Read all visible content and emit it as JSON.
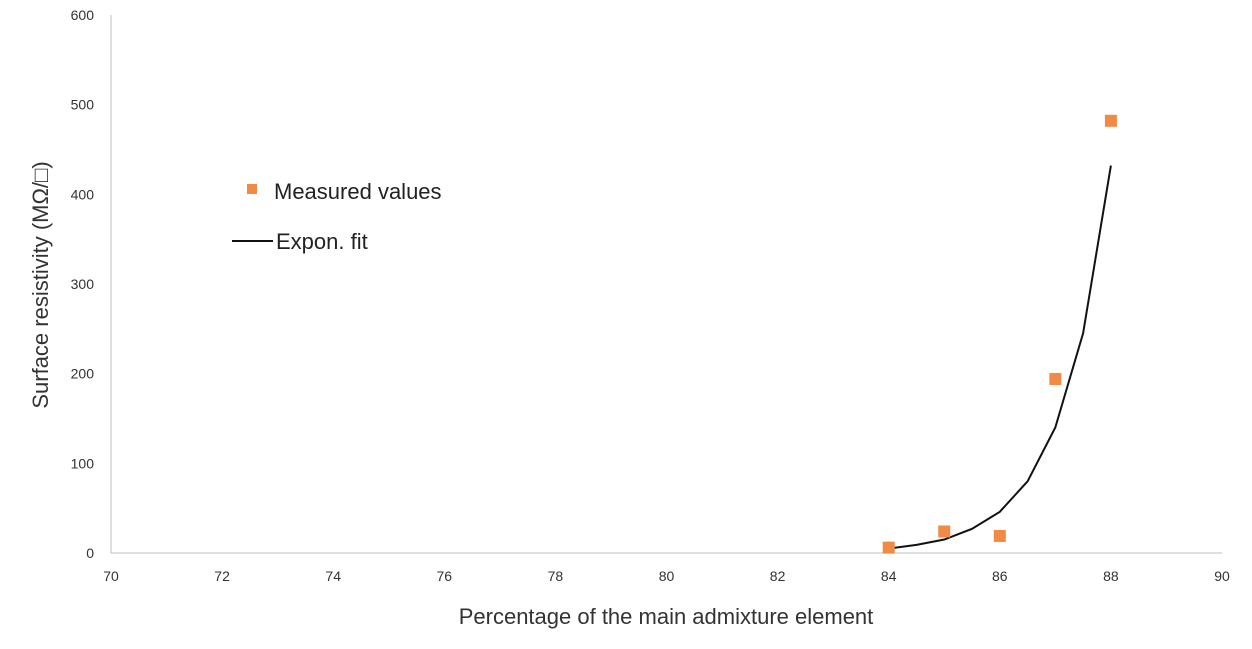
{
  "chart_data": {
    "type": "scatter",
    "title": "",
    "xlabel": "Percentage of the main admixture element",
    "ylabel": "Surface resistivity (MΩ/□)",
    "xlim": [
      70,
      90
    ],
    "ylim": [
      0,
      600
    ],
    "x_ticks": [
      70,
      72,
      74,
      76,
      78,
      80,
      82,
      84,
      86,
      88,
      90
    ],
    "y_ticks": [
      0,
      100,
      200,
      300,
      400,
      500,
      600
    ],
    "grid": false,
    "legend_position": "left",
    "series": [
      {
        "name": "Measured values",
        "kind": "markers",
        "marker": "square",
        "color": "#f08a45",
        "x": [
          84,
          85,
          86,
          87,
          88
        ],
        "y": [
          6,
          24,
          19,
          194,
          482
        ]
      },
      {
        "name": "Expon. fit",
        "kind": "line",
        "color": "#111111",
        "x": [
          84,
          84.5,
          85,
          85.5,
          86,
          86.5,
          87,
          87.5,
          88
        ],
        "y": [
          5,
          9,
          15,
          27,
          46,
          80,
          140,
          245,
          432
        ]
      }
    ]
  }
}
